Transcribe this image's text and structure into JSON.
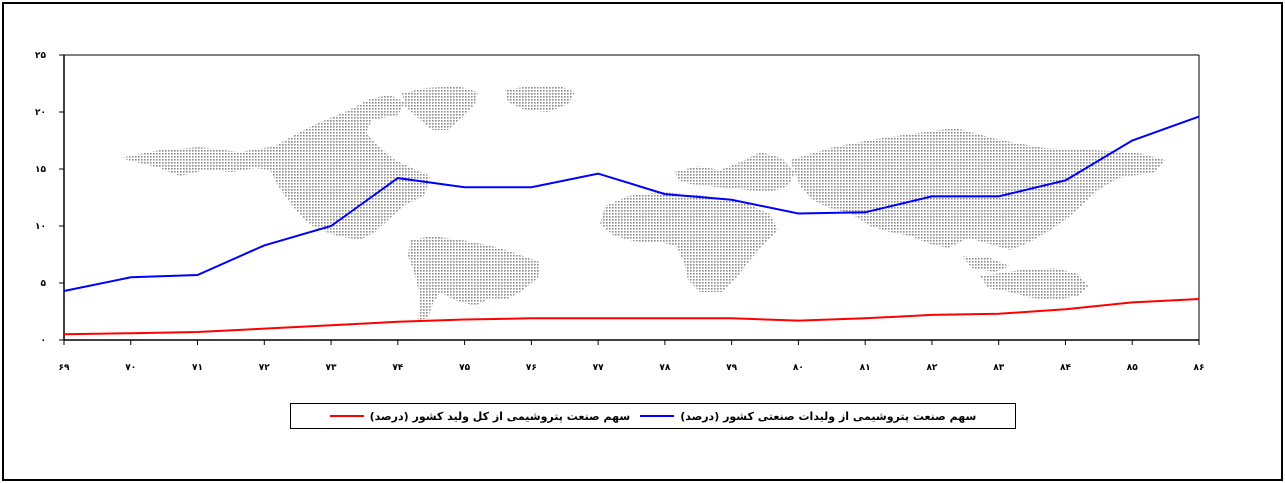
{
  "chart_data": {
    "type": "line",
    "x": [
      "۶۹",
      "۷۰",
      "۷۱",
      "۷۲",
      "۷۳",
      "۷۴",
      "۷۵",
      "۷۶",
      "۷۷",
      "۷۸",
      "۷۹",
      "۸۰",
      "۸۱",
      "۸۲",
      "۸۳",
      "۸۴",
      "۸۵",
      "۸۶"
    ],
    "y_ticks": [
      "۰",
      "۵",
      "۱۰",
      "۱۵",
      "۲۰",
      "۲۵"
    ],
    "ylim": [
      0,
      25
    ],
    "grid": false,
    "legend_position": "bottom",
    "series": [
      {
        "name": "سهم صنعت پتروشیمی از وليدات صنعتی کشور (درصد)",
        "color": "#0000ff",
        "values": [
          4.3,
          5.5,
          5.7,
          8.3,
          10.0,
          14.2,
          13.4,
          13.4,
          14.6,
          12.8,
          12.3,
          11.1,
          11.2,
          12.6,
          12.6,
          14.0,
          17.5,
          19.6
        ]
      },
      {
        "name": "سهم صنعت پتروشیمی از کل وليد کشور (درصد)",
        "color": "#ff0000",
        "values": [
          0.5,
          0.6,
          0.7,
          1.0,
          1.3,
          1.6,
          1.8,
          1.9,
          1.9,
          1.9,
          1.9,
          1.7,
          1.9,
          2.2,
          2.3,
          2.7,
          3.3,
          3.6
        ]
      }
    ]
  }
}
